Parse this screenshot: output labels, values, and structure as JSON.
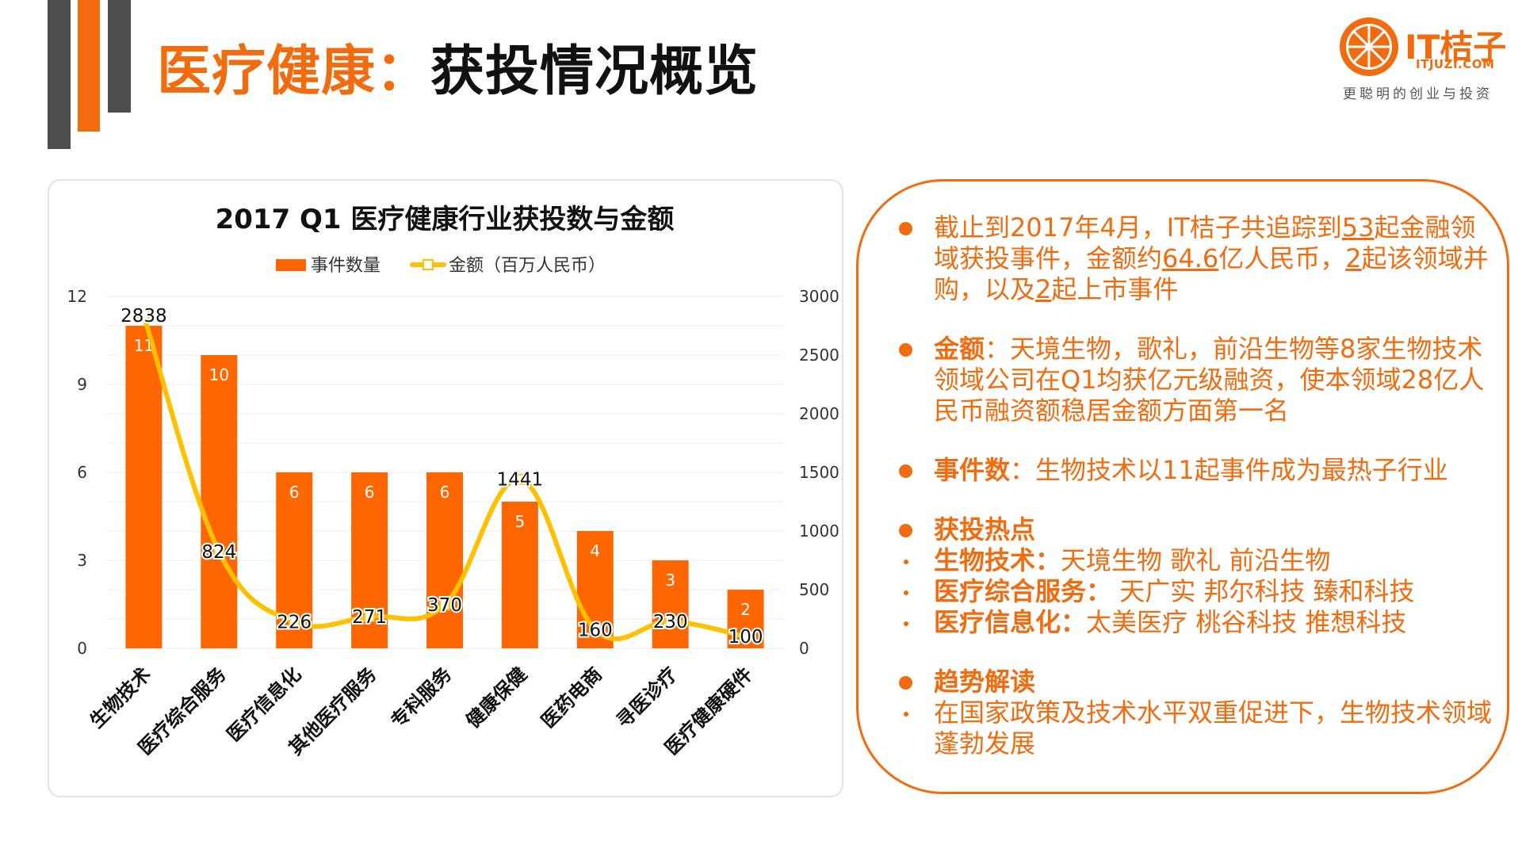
{
  "header": {
    "title_highlight": "医疗健康",
    "title_colon": "：",
    "title_rest": "获投情况概览"
  },
  "logo": {
    "brand": "IT桔子",
    "domain": "ITJUZI.COM",
    "tagline": "更聪明的创业与投资"
  },
  "colors": {
    "accent": "#f26b0f",
    "dark_bar": "#4d4d4d",
    "bar_fill": "#ff6600",
    "line": "#ffc000"
  },
  "chart_data": {
    "type": "bar",
    "title": "2017 Q1 医疗健康行业获投数与金额",
    "legend": [
      {
        "name": "事件数量",
        "color": "#ff6600"
      },
      {
        "name": "金额（百万人民币）",
        "color": "#ffc000"
      }
    ],
    "categories": [
      "生物技术",
      "医疗综合服务",
      "医疗信息化",
      "其他医疗服务",
      "专科服务",
      "健康保健",
      "医药电商",
      "寻医诊疗",
      "医疗健康硬件"
    ],
    "series": [
      {
        "name": "事件数量",
        "type": "bar",
        "axis": "left",
        "values": [
          11,
          10,
          6,
          6,
          6,
          5,
          4,
          3,
          2
        ]
      },
      {
        "name": "金额（百万人民币）",
        "type": "line",
        "axis": "right",
        "values": [
          2838,
          824,
          226,
          271,
          370,
          1441,
          160,
          230,
          100
        ]
      }
    ],
    "y_left": {
      "min": 0,
      "max": 12,
      "ticks": [
        0,
        3,
        6,
        9,
        12
      ]
    },
    "y_right": {
      "min": 0,
      "max": 3000,
      "ticks": [
        0,
        500,
        1000,
        1500,
        2000,
        2500,
        3000
      ]
    },
    "grid": true,
    "legend_position": "top"
  },
  "info": {
    "p1": {
      "a": "截止到2017年4月，IT桔子共追踪到",
      "n1": "53",
      "b": "起金融领域获投事件，金额约",
      "n2": "64.6",
      "c": "亿人民币，",
      "n3": "2",
      "d": "起该领域并购，以及",
      "n4": "2",
      "e": "起上市事件"
    },
    "p2": {
      "label": "金额",
      "text": "：天境生物，歌礼，前沿生物等8家生物技术领域公司在Q1均获亿元级融资，使本领域28亿人民币融资额稳居金额方面第一名"
    },
    "p3": {
      "label": "事件数",
      "text": "：生物技术以11起事件成为最热子行业"
    },
    "p4": {
      "label": "获投热点",
      "subs": [
        {
          "label": "生物技术：",
          "text": "天境生物 歌礼 前沿生物"
        },
        {
          "label": "医疗综合服务：",
          "text": " 天广实 邦尔科技 臻和科技"
        },
        {
          "label": "医疗信息化：",
          "text": "太美医疗 桃谷科技 推想科技"
        }
      ]
    },
    "p5": {
      "label": "趋势解读",
      "text": "在国家政策及技术水平双重促进下，生物技术领域蓬勃发展"
    }
  }
}
